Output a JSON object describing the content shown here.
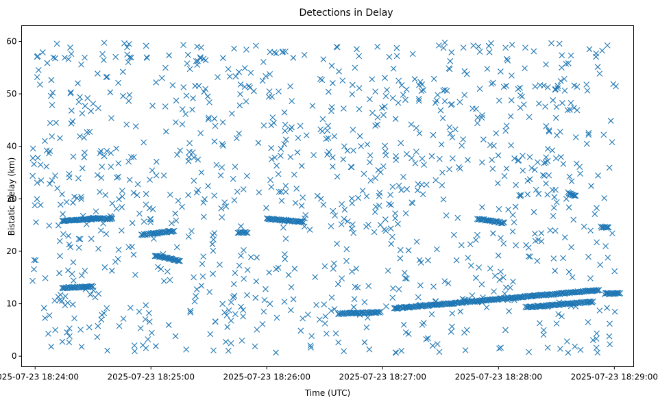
{
  "chart_data": {
    "type": "scatter",
    "title": "Detections in Delay",
    "xlabel": "Time (UTC)",
    "ylabel": "Bistatic Delay (km)",
    "x_ticks": [
      "2025-07-23 18:24:00",
      "2025-07-23 18:25:00",
      "2025-07-23 18:26:00",
      "2025-07-23 18:27:00",
      "2025-07-23 18:28:00",
      "2025-07-23 18:29:00"
    ],
    "y_ticks": [
      0,
      10,
      20,
      30,
      40,
      50,
      60
    ],
    "xlim": [
      "2025-07-23 18:23:53",
      "2025-07-23 18:29:10"
    ],
    "ylim": [
      -2,
      63
    ],
    "grid": false,
    "marker": "x",
    "series": [
      {
        "color": "#1f77b4",
        "tracks": [
          {
            "t0": "2025-07-23 18:24:14",
            "t1": "2025-07-23 18:24:30",
            "y0": 13.0,
            "y1": 13.3
          },
          {
            "t0": "2025-07-23 18:24:14",
            "t1": "2025-07-23 18:24:34",
            "y0": 25.8,
            "y1": 26.2
          },
          {
            "t0": "2025-07-23 18:24:29",
            "t1": "2025-07-23 18:24:40",
            "y0": 26.3,
            "y1": 26.2
          },
          {
            "t0": "2025-07-23 18:24:55",
            "t1": "2025-07-23 18:25:12",
            "y0": 23.1,
            "y1": 23.9
          },
          {
            "t0": "2025-07-23 18:25:02",
            "t1": "2025-07-23 18:25:15",
            "y0": 19.2,
            "y1": 18.2
          },
          {
            "t0": "2025-07-23 18:25:45",
            "t1": "2025-07-23 18:25:50",
            "y0": 23.5,
            "y1": 23.6
          },
          {
            "t0": "2025-07-23 18:26:00",
            "t1": "2025-07-23 18:26:19",
            "y0": 26.2,
            "y1": 25.6
          },
          {
            "t0": "2025-07-23 18:26:37",
            "t1": "2025-07-23 18:26:59",
            "y0": 8.1,
            "y1": 8.4
          },
          {
            "t0": "2025-07-23 18:27:06",
            "t1": "2025-07-23 18:28:52",
            "y0": 9.1,
            "y1": 12.6
          },
          {
            "t0": "2025-07-23 18:28:14",
            "t1": "2025-07-23 18:28:49",
            "y0": 9.3,
            "y1": 10.4
          },
          {
            "t0": "2025-07-23 18:28:55",
            "t1": "2025-07-23 18:29:03",
            "y0": 11.9,
            "y1": 12.0
          },
          {
            "t0": "2025-07-23 18:27:49",
            "t1": "2025-07-23 18:28:03",
            "y0": 26.2,
            "y1": 25.4
          },
          {
            "t0": "2025-07-23 18:28:36",
            "t1": "2025-07-23 18:28:40",
            "y0": 31.2,
            "y1": 30.5
          },
          {
            "t0": "2025-07-23 18:28:53",
            "t1": "2025-07-23 18:28:57",
            "y0": 24.6,
            "y1": 24.6
          }
        ]
      }
    ]
  }
}
